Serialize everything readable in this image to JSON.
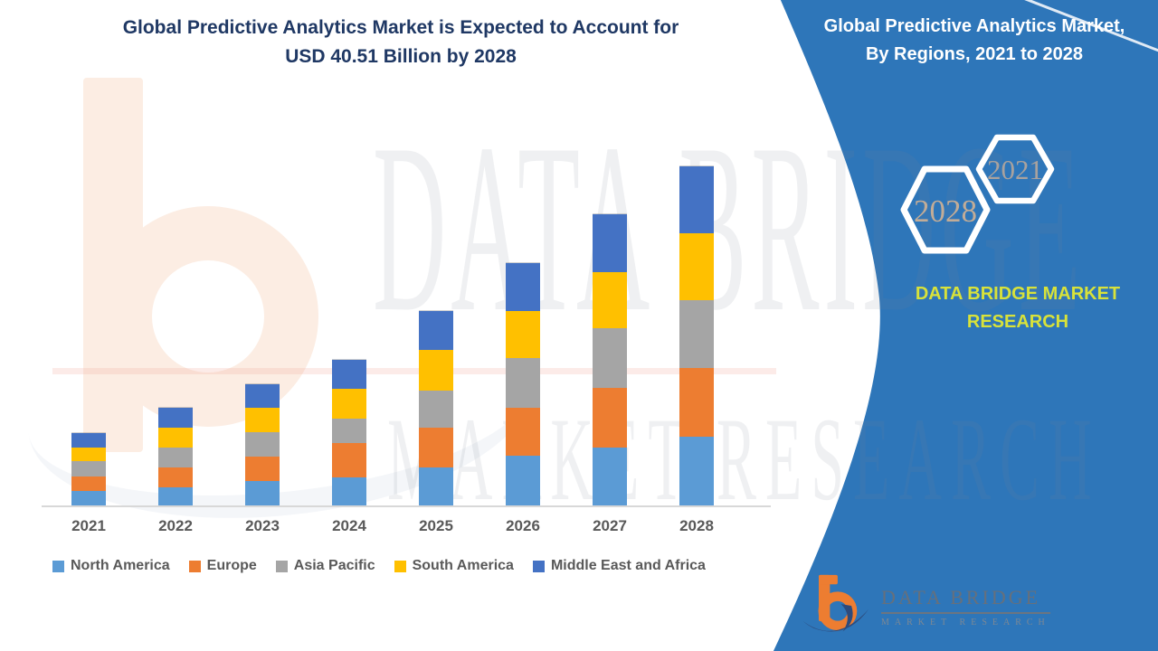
{
  "chart": {
    "title_line1": "Global Predictive Analytics Market is Expected to Account for",
    "title_line2": "USD 40.51 Billion by 2028",
    "title_color": "#1F3864",
    "axis_label_color": "#595959"
  },
  "chart_data": {
    "type": "bar",
    "stacked": true,
    "title": "Global Predictive Analytics Market is Expected to Account for USD 40.51 Billion by 2028",
    "unit": "USD Billion",
    "categories": [
      "2021",
      "2022",
      "2023",
      "2024",
      "2025",
      "2026",
      "2027",
      "2028"
    ],
    "series": [
      {
        "name": "North America",
        "color": "#5B9BD5",
        "values": [
          1.7,
          2.2,
          2.9,
          3.4,
          4.5,
          5.9,
          6.9,
          8.2
        ]
      },
      {
        "name": "Europe",
        "color": "#ED7D31",
        "values": [
          1.7,
          2.4,
          2.9,
          4.1,
          4.8,
          5.7,
          7.1,
          8.2
        ]
      },
      {
        "name": "Asia Pacific",
        "color": "#A5A5A5",
        "values": [
          1.8,
          2.4,
          2.9,
          2.9,
          4.4,
          5.9,
          7.1,
          8.1
        ]
      },
      {
        "name": "South America",
        "color": "#FFC000",
        "values": [
          1.6,
          2.4,
          2.9,
          3.6,
          4.9,
          5.6,
          6.7,
          8.0
        ]
      },
      {
        "name": "Middle East and Africa",
        "color": "#4472C4",
        "values": [
          1.7,
          2.4,
          2.8,
          3.5,
          4.6,
          5.7,
          6.9,
          8.0
        ]
      }
    ],
    "totals": [
      8.5,
      11.8,
      14.4,
      17.5,
      23.2,
      28.8,
      34.7,
      40.51
    ],
    "ylim": [
      0,
      42
    ],
    "gridlines": false,
    "legend_position": "bottom",
    "annotation": "USD 40.51 Billion by 2028"
  },
  "sidebar": {
    "background": "#2E76B9",
    "title_line1": "Global Predictive Analytics Market,",
    "title_line2": "By Regions, 2021 to 2028",
    "hexagons": [
      {
        "label": "2028",
        "label_color": "#C2AC97"
      },
      {
        "label": "2021",
        "label_color": "#A9A29E"
      }
    ],
    "brand_line1": "DATA BRIDGE MARKET",
    "brand_line2": "RESEARCH",
    "brand_color": "#D8E23A",
    "logo": {
      "name_line": "DATA BRIDGE",
      "sub_line": "MARKET RESEARCH"
    }
  },
  "watermark": {
    "line1": "DATA BRIDGE",
    "line2": "MARKET RESEARCH"
  }
}
